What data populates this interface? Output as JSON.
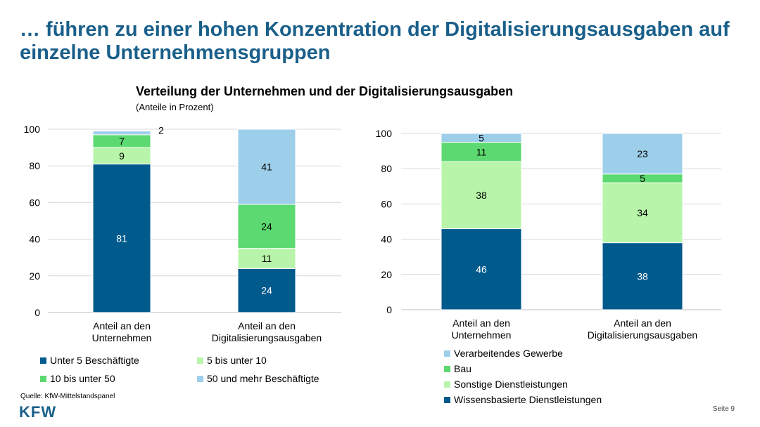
{
  "title": "… führen zu einer hohen Konzentration der Digitalisierungsausgaben auf einzelne Unternehmensgruppen",
  "chart_title": "Verteilung der Unternehmen und der Digitalisierungsausgaben",
  "chart_subtitle": "(Anteile in Prozent)",
  "source": "Quelle: KfW-Mittelstandspanel",
  "logo": "KFW",
  "page": "Seite 9",
  "chart_data": [
    {
      "type": "bar",
      "stacked": true,
      "ylim": [
        0,
        100
      ],
      "yticks": [
        0,
        20,
        40,
        60,
        80,
        100
      ],
      "grid": true,
      "legend": "bottom",
      "categories": [
        [
          "Anteil an den",
          "Unternehmen"
        ],
        [
          "Anteil an den",
          "Digitalisierungsausgaben"
        ]
      ],
      "series": [
        {
          "name": "Unter 5 Beschäftigte",
          "color": "#005a8c",
          "values": [
            81,
            24
          ]
        },
        {
          "name": "5 bis unter 10",
          "color": "#b8f5aa",
          "values": [
            9,
            11
          ]
        },
        {
          "name": "10 bis unter 50",
          "color": "#5cd970",
          "values": [
            7,
            24
          ]
        },
        {
          "name": "50 und mehr Beschäftigte",
          "color": "#9dcfea",
          "values": [
            2,
            41
          ]
        }
      ]
    },
    {
      "type": "bar",
      "stacked": true,
      "ylim": [
        0,
        100
      ],
      "yticks": [
        0,
        20,
        40,
        60,
        80,
        100
      ],
      "grid": true,
      "legend": "bottom",
      "categories": [
        [
          "Anteil an den",
          "Unternehmen"
        ],
        [
          "Anteil an den",
          "Digitalisierungsausgaben"
        ]
      ],
      "series": [
        {
          "name": "Wissensbasierte Dienstleistungen",
          "color": "#005a8c",
          "values": [
            46,
            38
          ]
        },
        {
          "name": "Sonstige Dienstleistungen",
          "color": "#b8f5aa",
          "values": [
            38,
            34
          ]
        },
        {
          "name": "Bau",
          "color": "#5cd970",
          "values": [
            11,
            5
          ]
        },
        {
          "name": "Verarbeitendes Gewerbe",
          "color": "#9dcfea",
          "values": [
            5,
            23
          ]
        }
      ]
    }
  ]
}
